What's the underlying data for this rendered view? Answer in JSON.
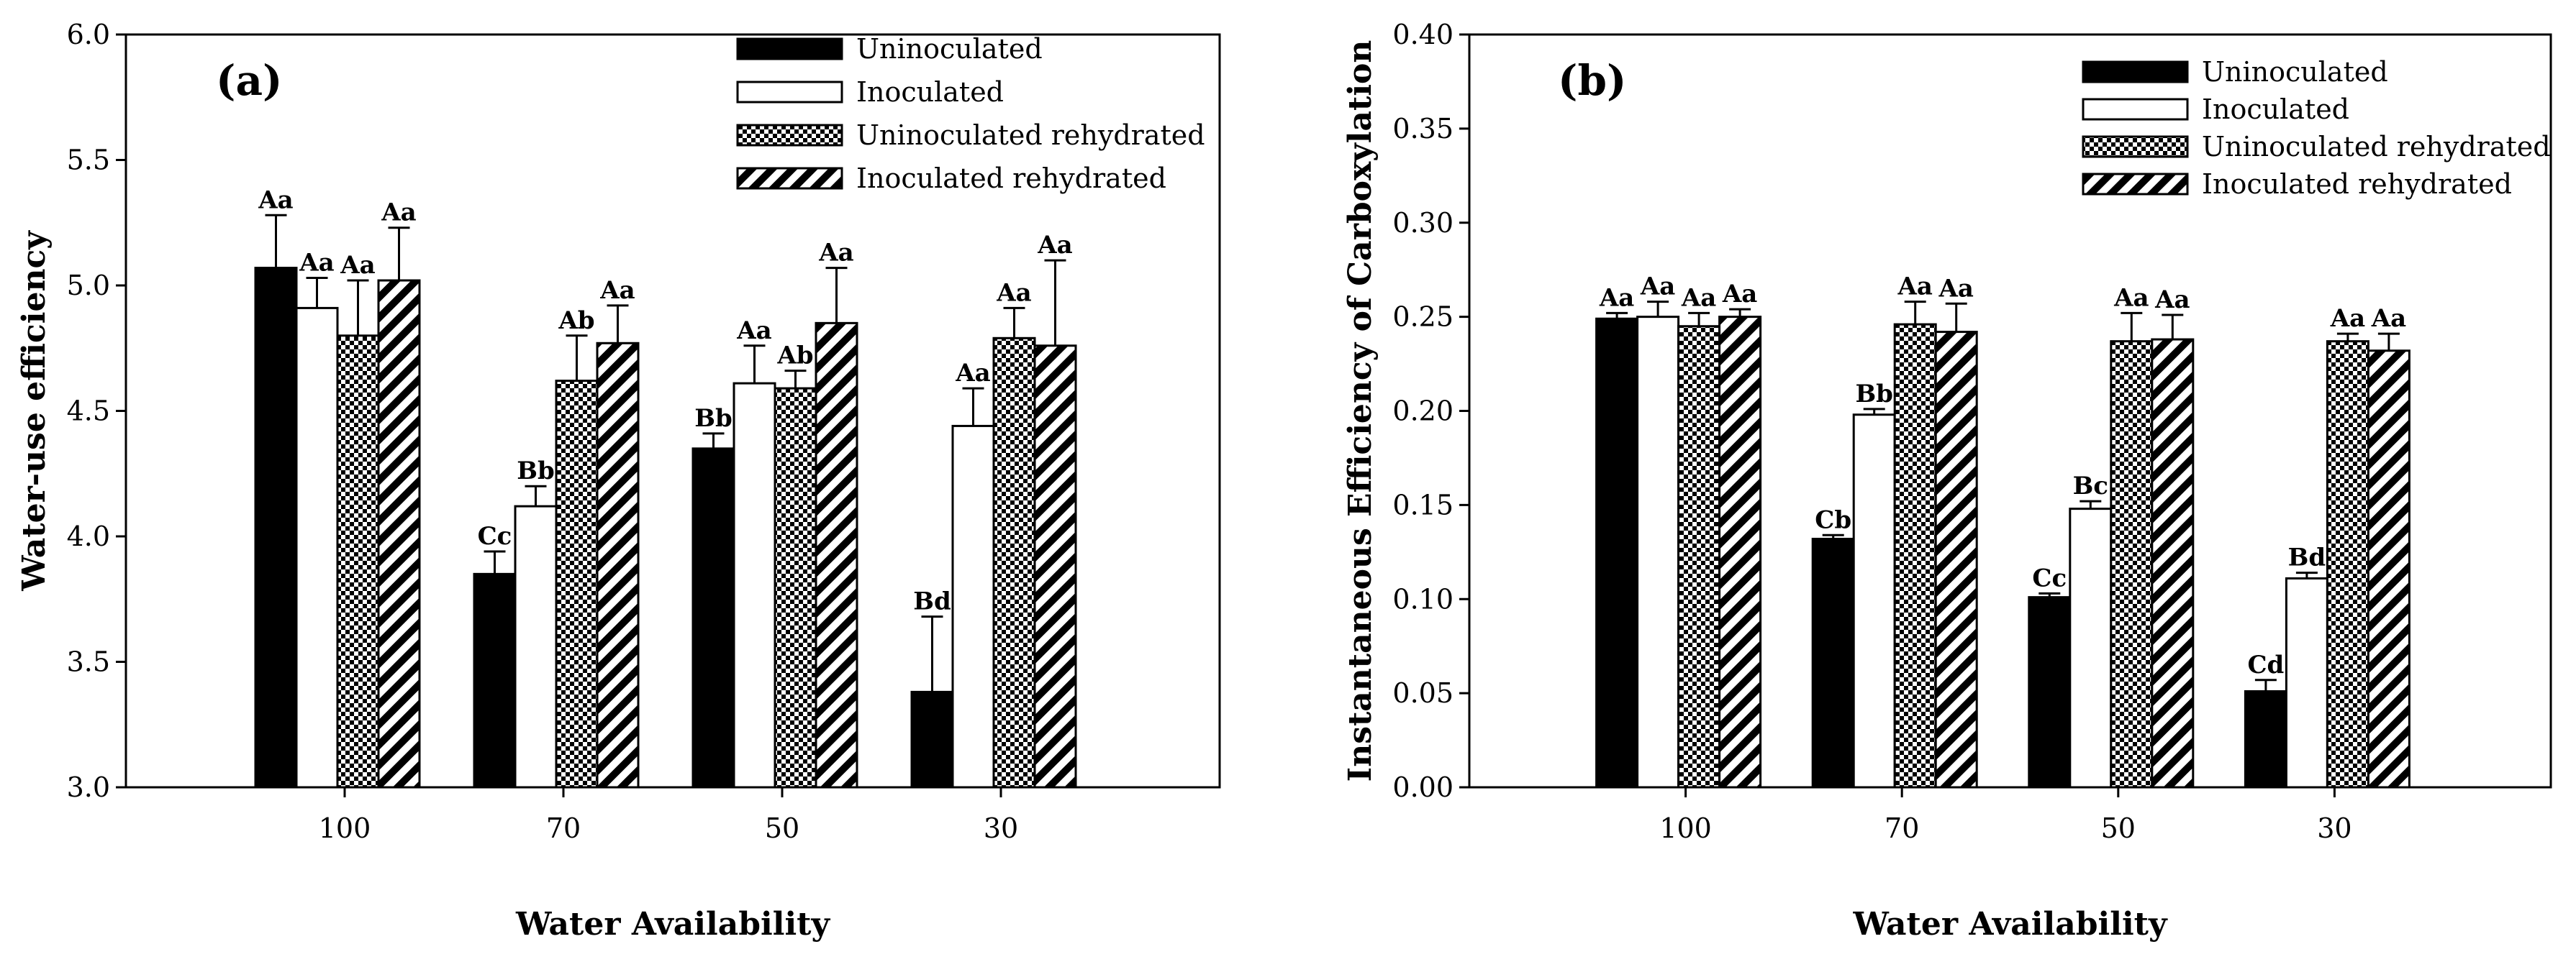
{
  "chart_data": [
    {
      "type": "bar",
      "panel_label": "(a)",
      "title": "",
      "xlabel": "Water Availability",
      "ylabel": "Water-use efficiency",
      "ylim": [
        3.0,
        6.0
      ],
      "yticks": [
        "3.0",
        "3.5",
        "4.0",
        "4.5",
        "5.0",
        "5.5",
        "6.0"
      ],
      "categories": [
        "100",
        "70",
        "50",
        "30"
      ],
      "legend_position": "top-right",
      "series": [
        {
          "name": "Uninoculated",
          "pattern": "solid",
          "values": [
            5.07,
            3.85,
            4.35,
            3.38
          ],
          "errors": [
            0.21,
            0.09,
            0.06,
            0.3
          ],
          "labels": [
            "Aa",
            "Cc",
            "Bb",
            "Bd"
          ]
        },
        {
          "name": "Inoculated",
          "pattern": "open",
          "values": [
            4.91,
            4.12,
            4.61,
            4.44
          ],
          "errors": [
            0.12,
            0.08,
            0.15,
            0.15
          ],
          "labels": [
            "Aa",
            "Bb",
            "Aa",
            "Aa"
          ]
        },
        {
          "name": "Uninoculated rehydrated",
          "pattern": "checker",
          "values": [
            4.8,
            4.62,
            4.59,
            4.79
          ],
          "errors": [
            0.22,
            0.18,
            0.07,
            0.12
          ],
          "labels": [
            "Aa",
            "Ab",
            "Ab",
            "Aa"
          ]
        },
        {
          "name": "Inoculated rehydrated",
          "pattern": "hatch",
          "values": [
            5.02,
            4.77,
            4.85,
            4.76
          ],
          "errors": [
            0.21,
            0.15,
            0.22,
            0.34
          ],
          "labels": [
            "Aa",
            "Aa",
            "Aa",
            "Aa"
          ]
        }
      ]
    },
    {
      "type": "bar",
      "panel_label": "(b)",
      "title": "",
      "xlabel": "Water Availability",
      "ylabel": "Instantaneous Efficiency of Carboxylation",
      "ylim": [
        0.0,
        0.4
      ],
      "yticks": [
        "0.00",
        "0.05",
        "0.10",
        "0.15",
        "0.20",
        "0.25",
        "0.30",
        "0.35",
        "0.40"
      ],
      "categories": [
        "100",
        "70",
        "50",
        "30"
      ],
      "legend_position": "top-right",
      "series": [
        {
          "name": "Uninoculated",
          "pattern": "solid",
          "values": [
            0.249,
            0.132,
            0.101,
            0.051
          ],
          "errors": [
            0.003,
            0.002,
            0.002,
            0.006
          ],
          "labels": [
            "Aa",
            "Cb",
            "Cc",
            "Cd"
          ]
        },
        {
          "name": "Inoculated",
          "pattern": "open",
          "values": [
            0.25,
            0.198,
            0.148,
            0.111
          ],
          "errors": [
            0.008,
            0.003,
            0.004,
            0.003
          ],
          "labels": [
            "Aa",
            "Bb",
            "Bc",
            "Bd"
          ]
        },
        {
          "name": "Uninoculated rehydrated",
          "pattern": "checker",
          "values": [
            0.245,
            0.246,
            0.237,
            0.237
          ],
          "errors": [
            0.007,
            0.012,
            0.015,
            0.004
          ],
          "labels": [
            "Aa",
            "Aa",
            "Aa",
            "Aa"
          ]
        },
        {
          "name": "Inoculated rehydrated",
          "pattern": "hatch",
          "values": [
            0.25,
            0.242,
            0.238,
            0.232
          ],
          "errors": [
            0.004,
            0.015,
            0.013,
            0.009
          ],
          "labels": [
            "Aa",
            "Aa",
            "Aa",
            "Aa"
          ]
        }
      ]
    }
  ]
}
